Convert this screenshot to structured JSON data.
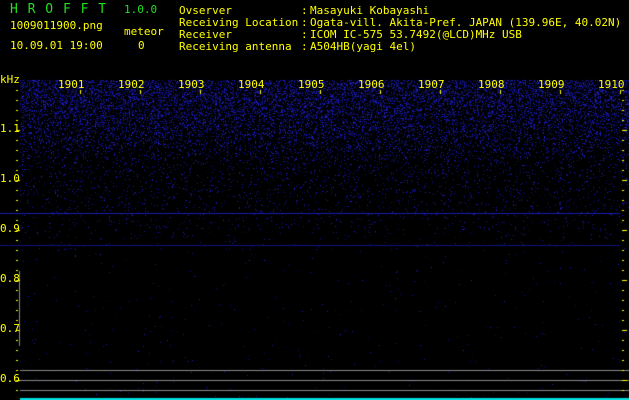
{
  "app": {
    "title": "H R O F F T",
    "version": "1.0.0"
  },
  "file": {
    "name": "1009011900.png",
    "datetime": "10.09.01 19:00"
  },
  "meteor": {
    "label": "meteor",
    "count": "0"
  },
  "info": [
    {
      "label": "Ovserver",
      "value": "Masayuki Kobayashi"
    },
    {
      "label": "Receiving Location",
      "value": "Ogata-vill. Akita-Pref. JAPAN (139.96E, 40.02N)"
    },
    {
      "label": "Receiver",
      "value": "ICOM IC-575 53.7492(@LCD)MHz USB"
    },
    {
      "label": "Receiving antenna",
      "value": "A504HB(yagi 4el)"
    }
  ],
  "axis": {
    "unit": "kHz",
    "y_ticks": [
      "1.1",
      "1.0",
      "0.9",
      "0.8",
      "0.7",
      "0.6"
    ],
    "x_ticks": [
      "1901",
      "1902",
      "1903",
      "1904",
      "1905",
      "1906",
      "1907",
      "1908",
      "1909",
      "1910"
    ]
  },
  "colors": {
    "text": "#ffff00",
    "title": "#22dd22",
    "noise": "#2020c0",
    "bottom_line": "#00e0e0"
  }
}
